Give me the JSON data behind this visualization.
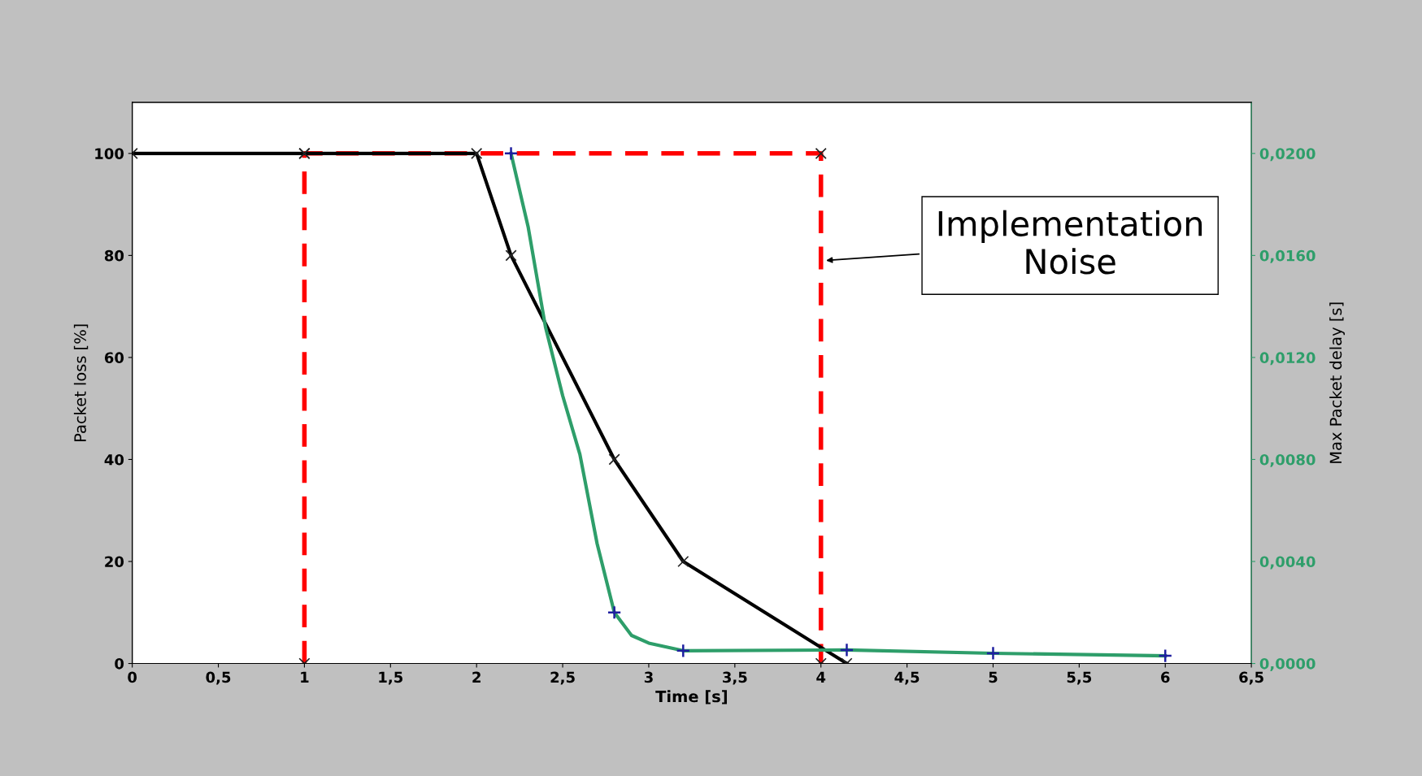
{
  "chart_data": {
    "type": "line",
    "xlabel": "Time [s]",
    "ylabel": "Packet loss [%]",
    "y2label": "Max Packet delay [s]",
    "xlim": [
      0,
      6.5
    ],
    "xticks": [
      0,
      {
        "value": 0.5,
        "label": "0,5"
      },
      1,
      {
        "value": 1.5,
        "label": "1,5"
      },
      2,
      {
        "value": 2.5,
        "label": "2,5"
      },
      3,
      {
        "value": 3.5,
        "label": "3,5"
      },
      4,
      {
        "value": 4.5,
        "label": "4,5"
      },
      5,
      {
        "value": 5.5,
        "label": "5,5"
      },
      6,
      {
        "value": 6.5,
        "label": "6,5"
      }
    ],
    "ylim": [
      0,
      110
    ],
    "yticks": [
      0,
      20,
      40,
      60,
      80,
      100
    ],
    "y2lim": [
      0,
      0.022
    ],
    "y2ticks": [
      {
        "value": 0,
        "label": "0,0000"
      },
      {
        "value": 0.004,
        "label": "0,0040"
      },
      {
        "value": 0.008,
        "label": "0,0080"
      },
      {
        "value": 0.012,
        "label": "0,0120"
      },
      {
        "value": 0.016,
        "label": "0,0160"
      },
      {
        "value": 0.02,
        "label": "0,0200"
      }
    ],
    "grid": false,
    "legend": false,
    "series": [
      {
        "color": "#ff0000",
        "line_style": "dashed",
        "marker": "cross",
        "x": [
          1,
          1,
          4,
          4
        ],
        "values": [
          0,
          100,
          100,
          0
        ]
      },
      {
        "color": "#000000",
        "line_style": "solid",
        "marker": "cross",
        "x": [
          0,
          1,
          2,
          2.2,
          2.8,
          3.2,
          4.15
        ],
        "values": [
          100,
          100,
          100,
          80,
          40,
          20,
          0
        ]
      },
      {
        "axis": "y2",
        "color": "#2e9e6a",
        "line_style": "solid",
        "marker": "none",
        "x": [
          2.2,
          2.3,
          2.4,
          2.5,
          2.6,
          2.7,
          2.8,
          2.9,
          3.0,
          3.2,
          4.15,
          5,
          6
        ],
        "values": [
          0.02,
          0.0171,
          0.0132,
          0.0105,
          0.0082,
          0.0047,
          0.002,
          0.0011,
          0.0008,
          0.0005,
          0.00053,
          0.0004,
          0.0003
        ]
      },
      {
        "type": "scatter",
        "axis": "y2",
        "color": "#1f1fa0",
        "marker": "plus",
        "x": [
          2.2,
          2.8,
          3.2,
          4.15,
          5,
          6
        ],
        "values": [
          0.02,
          0.002,
          0.0005,
          0.00053,
          0.0004,
          0.0003
        ]
      }
    ],
    "annotations": [
      "Implementation\nNoise"
    ]
  }
}
